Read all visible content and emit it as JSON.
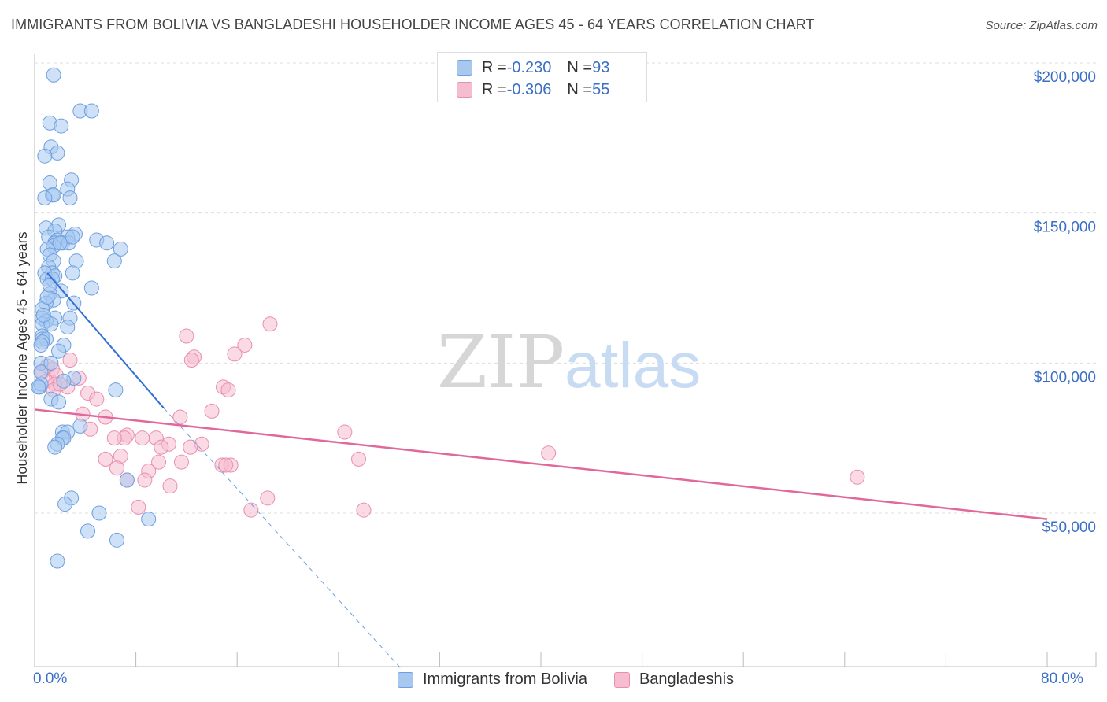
{
  "title": "IMMIGRANTS FROM BOLIVIA VS BANGLADESHI HOUSEHOLDER INCOME AGES 45 - 64 YEARS CORRELATION CHART",
  "source": "Source: ZipAtlas.com",
  "colors": {
    "blue_fill": "#a8c8f0",
    "blue_stroke": "#6d9fdf",
    "blue_line": "#2f6fd6",
    "pink_fill": "#f6bcd0",
    "pink_stroke": "#e98fae",
    "pink_line": "#e0689a",
    "axis_text": "#3a6fc4",
    "grid": "#dddddd"
  },
  "legend": {
    "rows": [
      {
        "r_label": "R = ",
        "r_value": "-0.230",
        "n_label": "N = ",
        "n_value": "93",
        "series": "bolivia"
      },
      {
        "r_label": "R = ",
        "r_value": "-0.306",
        "n_label": "N = ",
        "n_value": "55",
        "series": "bangladeshi"
      }
    ]
  },
  "bottom_legend": [
    "Immigrants from Bolivia",
    "Bangladeshis"
  ],
  "watermark": {
    "zip": "ZIP",
    "atlas": "atlas"
  },
  "chart_data": {
    "type": "scatter",
    "title": "IMMIGRANTS FROM BOLIVIA VS BANGLADESHI HOUSEHOLDER INCOME AGES 45 - 64 YEARS CORRELATION CHART",
    "xlabel": "",
    "ylabel": "Householder Income Ages 45 - 64 years",
    "xlim": [
      0,
      80
    ],
    "ylim": [
      0,
      210000
    ],
    "x_tick_labels": [
      "0.0%",
      "80.0%"
    ],
    "y_ticks": [
      50000,
      100000,
      150000,
      200000
    ],
    "y_tick_labels": [
      "$50,000",
      "$100,000",
      "$150,000",
      "$200,000"
    ],
    "grid": true,
    "legend_position": "top-center",
    "series": [
      {
        "name": "Immigrants from Bolivia",
        "key": "bolivia",
        "trend": {
          "x0": 1.0,
          "y0": 130000,
          "x1": 10.2,
          "y1": 85000,
          "dash_x1": 29.0,
          "dash_y1": -2000
        },
        "points": [
          [
            1.5,
            196000
          ],
          [
            3.6,
            184000
          ],
          [
            4.5,
            184000
          ],
          [
            1.2,
            180000
          ],
          [
            2.1,
            179000
          ],
          [
            1.3,
            172000
          ],
          [
            1.8,
            170000
          ],
          [
            0.8,
            169000
          ],
          [
            1.2,
            160000
          ],
          [
            2.9,
            161000
          ],
          [
            2.6,
            158000
          ],
          [
            1.4,
            156000
          ],
          [
            1.5,
            156000
          ],
          [
            0.8,
            155000
          ],
          [
            2.8,
            155000
          ],
          [
            1.9,
            146000
          ],
          [
            0.9,
            145000
          ],
          [
            1.6,
            144000
          ],
          [
            3.2,
            143000
          ],
          [
            1.1,
            142000
          ],
          [
            1.8,
            141000
          ],
          [
            2.6,
            142000
          ],
          [
            4.9,
            141000
          ],
          [
            5.7,
            140000
          ],
          [
            1.6,
            140000
          ],
          [
            2.2,
            140000
          ],
          [
            2.7,
            140000
          ],
          [
            1.5,
            139000
          ],
          [
            1.0,
            138000
          ],
          [
            6.8,
            138000
          ],
          [
            1.2,
            136000
          ],
          [
            1.5,
            134000
          ],
          [
            3.3,
            134000
          ],
          [
            6.3,
            134000
          ],
          [
            1.1,
            132000
          ],
          [
            1.4,
            130000
          ],
          [
            3.0,
            130000
          ],
          [
            0.8,
            130000
          ],
          [
            1.6,
            129000
          ],
          [
            1.0,
            128000
          ],
          [
            1.4,
            128000
          ],
          [
            4.5,
            125000
          ],
          [
            2.1,
            124000
          ],
          [
            1.2,
            123000
          ],
          [
            1.5,
            121000
          ],
          [
            3.1,
            120000
          ],
          [
            0.9,
            120000
          ],
          [
            0.6,
            118000
          ],
          [
            1.6,
            115000
          ],
          [
            0.6,
            115000
          ],
          [
            0.9,
            114000
          ],
          [
            2.8,
            115000
          ],
          [
            0.6,
            113000
          ],
          [
            1.3,
            113000
          ],
          [
            2.6,
            112000
          ],
          [
            0.6,
            109000
          ],
          [
            0.6,
            108000
          ],
          [
            0.9,
            108000
          ],
          [
            0.6,
            107000
          ],
          [
            2.3,
            106000
          ],
          [
            0.5,
            106000
          ],
          [
            1.9,
            104000
          ],
          [
            0.5,
            100000
          ],
          [
            3.1,
            95000
          ],
          [
            2.3,
            94000
          ],
          [
            0.4,
            92000
          ],
          [
            0.5,
            93000
          ],
          [
            6.4,
            91000
          ],
          [
            1.3,
            88000
          ],
          [
            1.9,
            87000
          ],
          [
            3.6,
            79000
          ],
          [
            2.2,
            77000
          ],
          [
            2.6,
            77000
          ],
          [
            2.2,
            75000
          ],
          [
            2.3,
            75000
          ],
          [
            1.8,
            73000
          ],
          [
            1.6,
            72000
          ],
          [
            7.3,
            61000
          ],
          [
            2.9,
            55000
          ],
          [
            2.4,
            53000
          ],
          [
            5.1,
            50000
          ],
          [
            9.0,
            48000
          ],
          [
            4.2,
            44000
          ],
          [
            6.5,
            41000
          ],
          [
            1.8,
            34000
          ],
          [
            0.3,
            92000
          ],
          [
            0.5,
            97000
          ],
          [
            1.0,
            122000
          ],
          [
            0.7,
            116000
          ],
          [
            1.2,
            126000
          ],
          [
            2.0,
            140000
          ],
          [
            3.0,
            142000
          ],
          [
            1.3,
            100000
          ]
        ]
      },
      {
        "name": "Bangladeshis",
        "key": "bangladeshi",
        "trend": {
          "x0": 0.0,
          "y0": 84500,
          "x1": 80.0,
          "y1": 48000
        },
        "points": [
          [
            18.6,
            113000
          ],
          [
            12.0,
            109000
          ],
          [
            16.6,
            106000
          ],
          [
            15.8,
            103000
          ],
          [
            12.6,
            102000
          ],
          [
            12.4,
            101000
          ],
          [
            2.8,
            101000
          ],
          [
            1.4,
            98000
          ],
          [
            0.6,
            97000
          ],
          [
            1.7,
            96000
          ],
          [
            3.5,
            95000
          ],
          [
            0.9,
            94000
          ],
          [
            1.6,
            93000
          ],
          [
            14.9,
            92000
          ],
          [
            15.3,
            91000
          ],
          [
            2.6,
            92000
          ],
          [
            1.5,
            91000
          ],
          [
            4.2,
            90000
          ],
          [
            4.9,
            88000
          ],
          [
            14.0,
            84000
          ],
          [
            3.8,
            83000
          ],
          [
            11.5,
            82000
          ],
          [
            5.6,
            82000
          ],
          [
            4.4,
            78000
          ],
          [
            24.5,
            77000
          ],
          [
            7.3,
            76000
          ],
          [
            7.1,
            75000
          ],
          [
            9.6,
            75000
          ],
          [
            8.5,
            75000
          ],
          [
            6.3,
            75000
          ],
          [
            10.6,
            73000
          ],
          [
            13.2,
            73000
          ],
          [
            10.0,
            72000
          ],
          [
            12.3,
            72000
          ],
          [
            40.6,
            70000
          ],
          [
            6.8,
            69000
          ],
          [
            25.6,
            68000
          ],
          [
            5.6,
            68000
          ],
          [
            11.6,
            67000
          ],
          [
            9.8,
            67000
          ],
          [
            14.8,
            66000
          ],
          [
            15.5,
            66000
          ],
          [
            15.1,
            66000
          ],
          [
            6.5,
            65000
          ],
          [
            9.0,
            64000
          ],
          [
            65.0,
            62000
          ],
          [
            7.3,
            61000
          ],
          [
            8.7,
            61000
          ],
          [
            10.7,
            59000
          ],
          [
            18.4,
            55000
          ],
          [
            26.0,
            51000
          ],
          [
            17.1,
            51000
          ],
          [
            8.2,
            52000
          ],
          [
            2.0,
            93000
          ],
          [
            1.0,
            99000
          ]
        ]
      }
    ]
  }
}
